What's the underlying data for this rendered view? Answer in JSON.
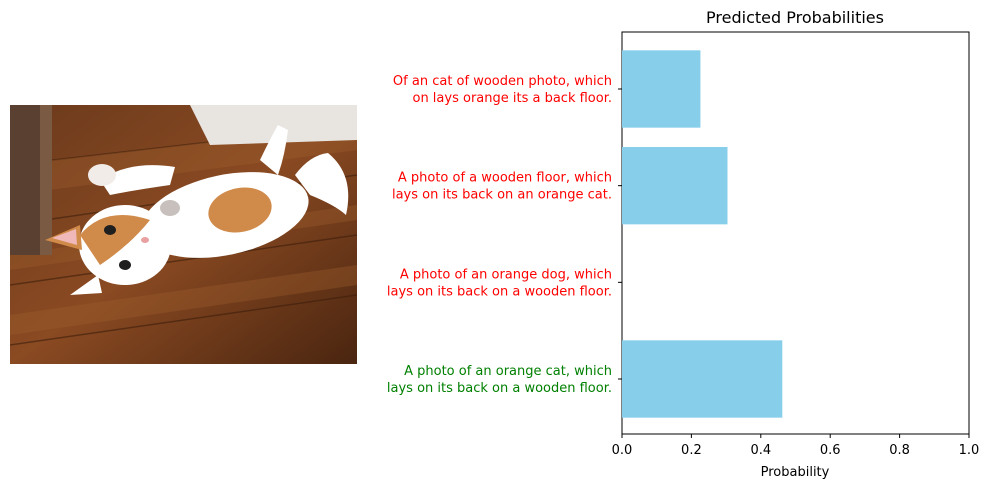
{
  "chart_data": {
    "type": "bar",
    "orientation": "horizontal",
    "title": "Predicted Probabilities",
    "xlabel": "Probability",
    "ylabel": "",
    "xlim": [
      0.0,
      1.0
    ],
    "x_ticks": [
      "0.0",
      "0.2",
      "0.4",
      "0.6",
      "0.8",
      "1.0"
    ],
    "bar_color": "#87ceeb",
    "grid": false,
    "categories": [
      {
        "lines": [
          "A photo of an orange cat, which",
          "lays on its back on a wooden floor."
        ],
        "value": 0.462,
        "color": "#008000"
      },
      {
        "lines": [
          "A photo of an orange dog, which",
          "lays on its back on a wooden floor."
        ],
        "value": 0.0,
        "color": "#ff0000"
      },
      {
        "lines": [
          "A photo of a wooden floor, which",
          "lays on its back on an orange cat."
        ],
        "value": 0.304,
        "color": "#ff0000"
      },
      {
        "lines": [
          "Of an cat of wooden photo, which",
          "on lays orange its a back floor."
        ],
        "value": 0.226,
        "color": "#ff0000"
      }
    ]
  },
  "photo": {
    "subject": "orange-and-white cat lying on its back on a wooden floor"
  }
}
